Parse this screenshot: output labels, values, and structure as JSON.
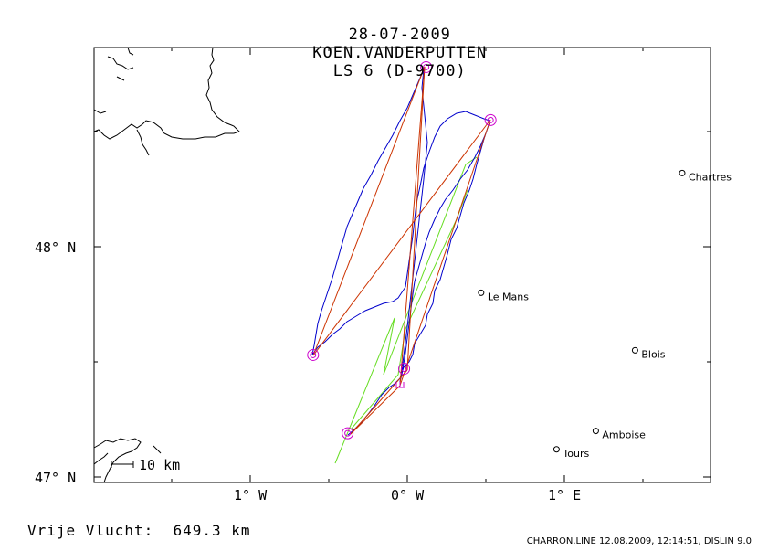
{
  "header": {
    "date": "28-07-2009",
    "pilot": "KOEN.VANDERPUTTEN",
    "glider": "LS 6 (D-9700)"
  },
  "map": {
    "lat_labels": [
      "48° N",
      "47° N"
    ],
    "lon_labels": [
      "1° W",
      "0° W",
      "1° E"
    ],
    "scale_label": "10 km",
    "cities": [
      {
        "name": "Chartres",
        "lon": 1.75,
        "lat": 48.32
      },
      {
        "name": "Le Mans",
        "lon": 0.47,
        "lat": 47.8
      },
      {
        "name": "Blois",
        "lon": 1.45,
        "lat": 47.55
      },
      {
        "name": "Amboise",
        "lon": 1.2,
        "lat": 47.2
      },
      {
        "name": "Tours",
        "lon": 0.95,
        "lat": 47.12
      }
    ],
    "turnpoints": [
      {
        "lon": 0.12,
        "lat": 48.78
      },
      {
        "lon": 0.53,
        "lat": 48.55
      },
      {
        "lon": -0.6,
        "lat": 47.53
      },
      {
        "lon": -0.38,
        "lat": 47.19
      },
      {
        "lon": -0.02,
        "lat": 47.47
      }
    ],
    "colors": {
      "track": "#0000cc",
      "task": "#cc3300",
      "glide": "#66dd22",
      "turnpoint": "#cc00cc",
      "coast": "#000000"
    }
  },
  "footer": {
    "distance_label": "Vrije Vlucht:",
    "distance_value": "649.3 km",
    "credits": "CHARRON.LINE 12.08.2009, 12:14:51, DISLIN 9.0"
  }
}
